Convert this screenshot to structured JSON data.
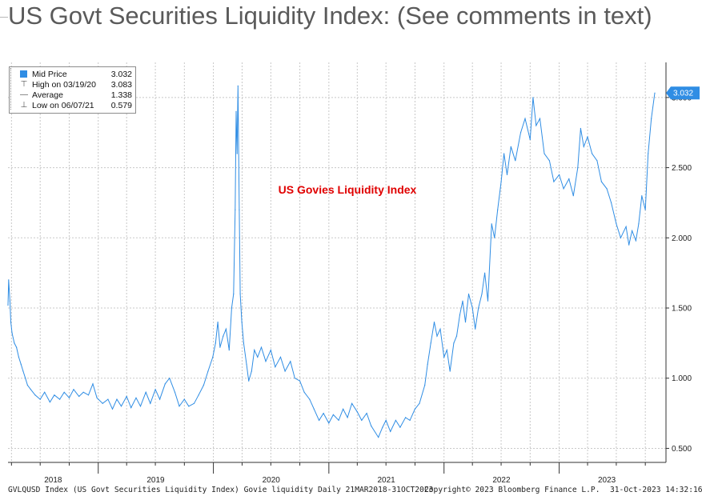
{
  "page": {
    "title": "US Govt Securities Liquidity Index: (See comments in text)"
  },
  "legend": {
    "items": [
      {
        "label": "Mid Price",
        "value": "3.032"
      },
      {
        "label": "High on 03/19/20",
        "value": "3.083"
      },
      {
        "label": "Average",
        "value": "1.338"
      },
      {
        "label": "Low on 06/07/21",
        "value": "0.579"
      }
    ]
  },
  "annotation": {
    "text": "US Govies Liquidity Index",
    "color": "#e00000"
  },
  "last_value_tag": "3.032",
  "footer": {
    "left": "GVLQUSD Index (US Govt Securities Liquidity Index) Govie liquidity  Daily 21MAR2018-31OCT2023",
    "copyright": "Copyright© 2023 Bloomberg Finance L.P.",
    "timestamp": "31-Oct-2023 14:32:16"
  },
  "colors": {
    "line": "#2f8de4",
    "tag": "#2f8de4",
    "grid": "#c8c8c8"
  },
  "chart_data": {
    "type": "line",
    "title": "US Govt Securities Liquidity Index: (See comments in text)",
    "xlabel": "",
    "ylabel": "",
    "x_range": [
      "2018-03-21",
      "2023-10-31"
    ],
    "ylim": [
      0.4,
      3.25
    ],
    "y_ticks": [
      "0.500",
      "1.000",
      "1.500",
      "2.000",
      "2.500",
      "3.000"
    ],
    "x_tick_labels": [
      "2018",
      "2019",
      "2020",
      "2021",
      "2022",
      "2023"
    ],
    "grid": true,
    "legend_position": "top-left",
    "series": [
      {
        "name": "US Govies Liquidity Index",
        "points": [
          [
            "2018-03-21",
            1.52
          ],
          [
            "2018-03-23",
            1.7
          ],
          [
            "2018-03-27",
            1.55
          ],
          [
            "2018-03-30",
            1.4
          ],
          [
            "2018-04-03",
            1.32
          ],
          [
            "2018-04-10",
            1.25
          ],
          [
            "2018-04-17",
            1.22
          ],
          [
            "2018-04-24",
            1.15
          ],
          [
            "2018-05-01",
            1.1
          ],
          [
            "2018-05-08",
            1.05
          ],
          [
            "2018-05-15",
            1.0
          ],
          [
            "2018-05-22",
            0.95
          ],
          [
            "2018-06-01",
            0.92
          ],
          [
            "2018-06-15",
            0.88
          ],
          [
            "2018-07-01",
            0.85
          ],
          [
            "2018-07-15",
            0.9
          ],
          [
            "2018-08-01",
            0.83
          ],
          [
            "2018-08-15",
            0.88
          ],
          [
            "2018-09-01",
            0.85
          ],
          [
            "2018-09-15",
            0.9
          ],
          [
            "2018-10-01",
            0.86
          ],
          [
            "2018-10-15",
            0.92
          ],
          [
            "2018-11-01",
            0.87
          ],
          [
            "2018-11-15",
            0.9
          ],
          [
            "2018-12-01",
            0.88
          ],
          [
            "2018-12-15",
            0.96
          ],
          [
            "2018-12-28",
            0.86
          ],
          [
            "2019-01-15",
            0.82
          ],
          [
            "2019-02-01",
            0.85
          ],
          [
            "2019-02-15",
            0.78
          ],
          [
            "2019-03-01",
            0.85
          ],
          [
            "2019-03-15",
            0.8
          ],
          [
            "2019-04-01",
            0.87
          ],
          [
            "2019-04-15",
            0.79
          ],
          [
            "2019-05-01",
            0.86
          ],
          [
            "2019-05-15",
            0.8
          ],
          [
            "2019-06-01",
            0.9
          ],
          [
            "2019-06-15",
            0.82
          ],
          [
            "2019-07-01",
            0.92
          ],
          [
            "2019-07-15",
            0.85
          ],
          [
            "2019-08-01",
            0.96
          ],
          [
            "2019-08-15",
            1.0
          ],
          [
            "2019-09-01",
            0.9
          ],
          [
            "2019-09-15",
            0.8
          ],
          [
            "2019-10-01",
            0.85
          ],
          [
            "2019-10-15",
            0.8
          ],
          [
            "2019-11-01",
            0.82
          ],
          [
            "2019-11-15",
            0.88
          ],
          [
            "2019-12-01",
            0.95
          ],
          [
            "2019-12-15",
            1.05
          ],
          [
            "2019-12-30",
            1.15
          ],
          [
            "2020-01-08",
            1.25
          ],
          [
            "2020-01-15",
            1.4
          ],
          [
            "2020-01-22",
            1.22
          ],
          [
            "2020-02-01",
            1.3
          ],
          [
            "2020-02-10",
            1.35
          ],
          [
            "2020-02-20",
            1.2
          ],
          [
            "2020-02-28",
            1.5
          ],
          [
            "2020-03-05",
            1.6
          ],
          [
            "2020-03-10",
            2.2
          ],
          [
            "2020-03-13",
            2.9
          ],
          [
            "2020-03-16",
            2.6
          ],
          [
            "2020-03-19",
            3.083
          ],
          [
            "2020-03-23",
            2.2
          ],
          [
            "2020-03-26",
            1.6
          ],
          [
            "2020-03-31",
            1.4
          ],
          [
            "2020-04-06",
            1.25
          ],
          [
            "2020-04-15",
            1.1
          ],
          [
            "2020-04-22",
            0.98
          ],
          [
            "2020-05-01",
            1.05
          ],
          [
            "2020-05-10",
            1.2
          ],
          [
            "2020-05-20",
            1.15
          ],
          [
            "2020-06-01",
            1.22
          ],
          [
            "2020-06-15",
            1.12
          ],
          [
            "2020-07-01",
            1.2
          ],
          [
            "2020-07-15",
            1.08
          ],
          [
            "2020-08-01",
            1.15
          ],
          [
            "2020-08-15",
            1.05
          ],
          [
            "2020-09-01",
            1.12
          ],
          [
            "2020-09-15",
            1.0
          ],
          [
            "2020-10-01",
            0.98
          ],
          [
            "2020-10-15",
            0.9
          ],
          [
            "2020-11-01",
            0.85
          ],
          [
            "2020-11-15",
            0.78
          ],
          [
            "2020-12-01",
            0.7
          ],
          [
            "2020-12-15",
            0.75
          ],
          [
            "2021-01-01",
            0.68
          ],
          [
            "2021-01-15",
            0.74
          ],
          [
            "2021-02-01",
            0.7
          ],
          [
            "2021-02-15",
            0.78
          ],
          [
            "2021-03-01",
            0.72
          ],
          [
            "2021-03-15",
            0.82
          ],
          [
            "2021-04-01",
            0.76
          ],
          [
            "2021-04-15",
            0.7
          ],
          [
            "2021-05-01",
            0.75
          ],
          [
            "2021-05-15",
            0.66
          ],
          [
            "2021-06-07",
            0.579
          ],
          [
            "2021-06-20",
            0.65
          ],
          [
            "2021-07-01",
            0.7
          ],
          [
            "2021-07-15",
            0.62
          ],
          [
            "2021-08-01",
            0.7
          ],
          [
            "2021-08-15",
            0.65
          ],
          [
            "2021-09-01",
            0.72
          ],
          [
            "2021-09-15",
            0.7
          ],
          [
            "2021-10-01",
            0.78
          ],
          [
            "2021-10-15",
            0.82
          ],
          [
            "2021-11-01",
            0.95
          ],
          [
            "2021-11-10",
            1.1
          ],
          [
            "2021-11-20",
            1.25
          ],
          [
            "2021-12-01",
            1.4
          ],
          [
            "2021-12-10",
            1.3
          ],
          [
            "2021-12-20",
            1.35
          ],
          [
            "2022-01-01",
            1.15
          ],
          [
            "2022-01-10",
            1.2
          ],
          [
            "2022-01-20",
            1.05
          ],
          [
            "2022-02-01",
            1.25
          ],
          [
            "2022-02-10",
            1.3
          ],
          [
            "2022-02-20",
            1.45
          ],
          [
            "2022-03-01",
            1.55
          ],
          [
            "2022-03-10",
            1.4
          ],
          [
            "2022-03-20",
            1.6
          ],
          [
            "2022-04-01",
            1.5
          ],
          [
            "2022-04-10",
            1.35
          ],
          [
            "2022-04-20",
            1.5
          ],
          [
            "2022-05-01",
            1.6
          ],
          [
            "2022-05-10",
            1.75
          ],
          [
            "2022-05-20",
            1.55
          ],
          [
            "2022-06-01",
            2.1
          ],
          [
            "2022-06-10",
            2.0
          ],
          [
            "2022-06-20",
            2.2
          ],
          [
            "2022-07-01",
            2.4
          ],
          [
            "2022-07-10",
            2.6
          ],
          [
            "2022-07-20",
            2.45
          ],
          [
            "2022-08-01",
            2.65
          ],
          [
            "2022-08-15",
            2.55
          ],
          [
            "2022-09-01",
            2.75
          ],
          [
            "2022-09-15",
            2.85
          ],
          [
            "2022-10-01",
            2.7
          ],
          [
            "2022-10-10",
            3.0
          ],
          [
            "2022-10-20",
            2.8
          ],
          [
            "2022-11-01",
            2.85
          ],
          [
            "2022-11-15",
            2.6
          ],
          [
            "2022-12-01",
            2.55
          ],
          [
            "2022-12-15",
            2.4
          ],
          [
            "2023-01-01",
            2.45
          ],
          [
            "2023-01-15",
            2.35
          ],
          [
            "2023-02-01",
            2.42
          ],
          [
            "2023-02-15",
            2.3
          ],
          [
            "2023-03-01",
            2.5
          ],
          [
            "2023-03-10",
            2.78
          ],
          [
            "2023-03-20",
            2.65
          ],
          [
            "2023-04-01",
            2.72
          ],
          [
            "2023-04-15",
            2.6
          ],
          [
            "2023-05-01",
            2.55
          ],
          [
            "2023-05-15",
            2.4
          ],
          [
            "2023-06-01",
            2.35
          ],
          [
            "2023-06-15",
            2.25
          ],
          [
            "2023-07-01",
            2.1
          ],
          [
            "2023-07-15",
            2.0
          ],
          [
            "2023-08-01",
            2.08
          ],
          [
            "2023-08-10",
            1.95
          ],
          [
            "2023-08-20",
            2.05
          ],
          [
            "2023-09-01",
            1.98
          ],
          [
            "2023-09-10",
            2.1
          ],
          [
            "2023-09-20",
            2.3
          ],
          [
            "2023-10-01",
            2.2
          ],
          [
            "2023-10-10",
            2.6
          ],
          [
            "2023-10-20",
            2.85
          ],
          [
            "2023-10-31",
            3.032
          ]
        ]
      }
    ]
  }
}
